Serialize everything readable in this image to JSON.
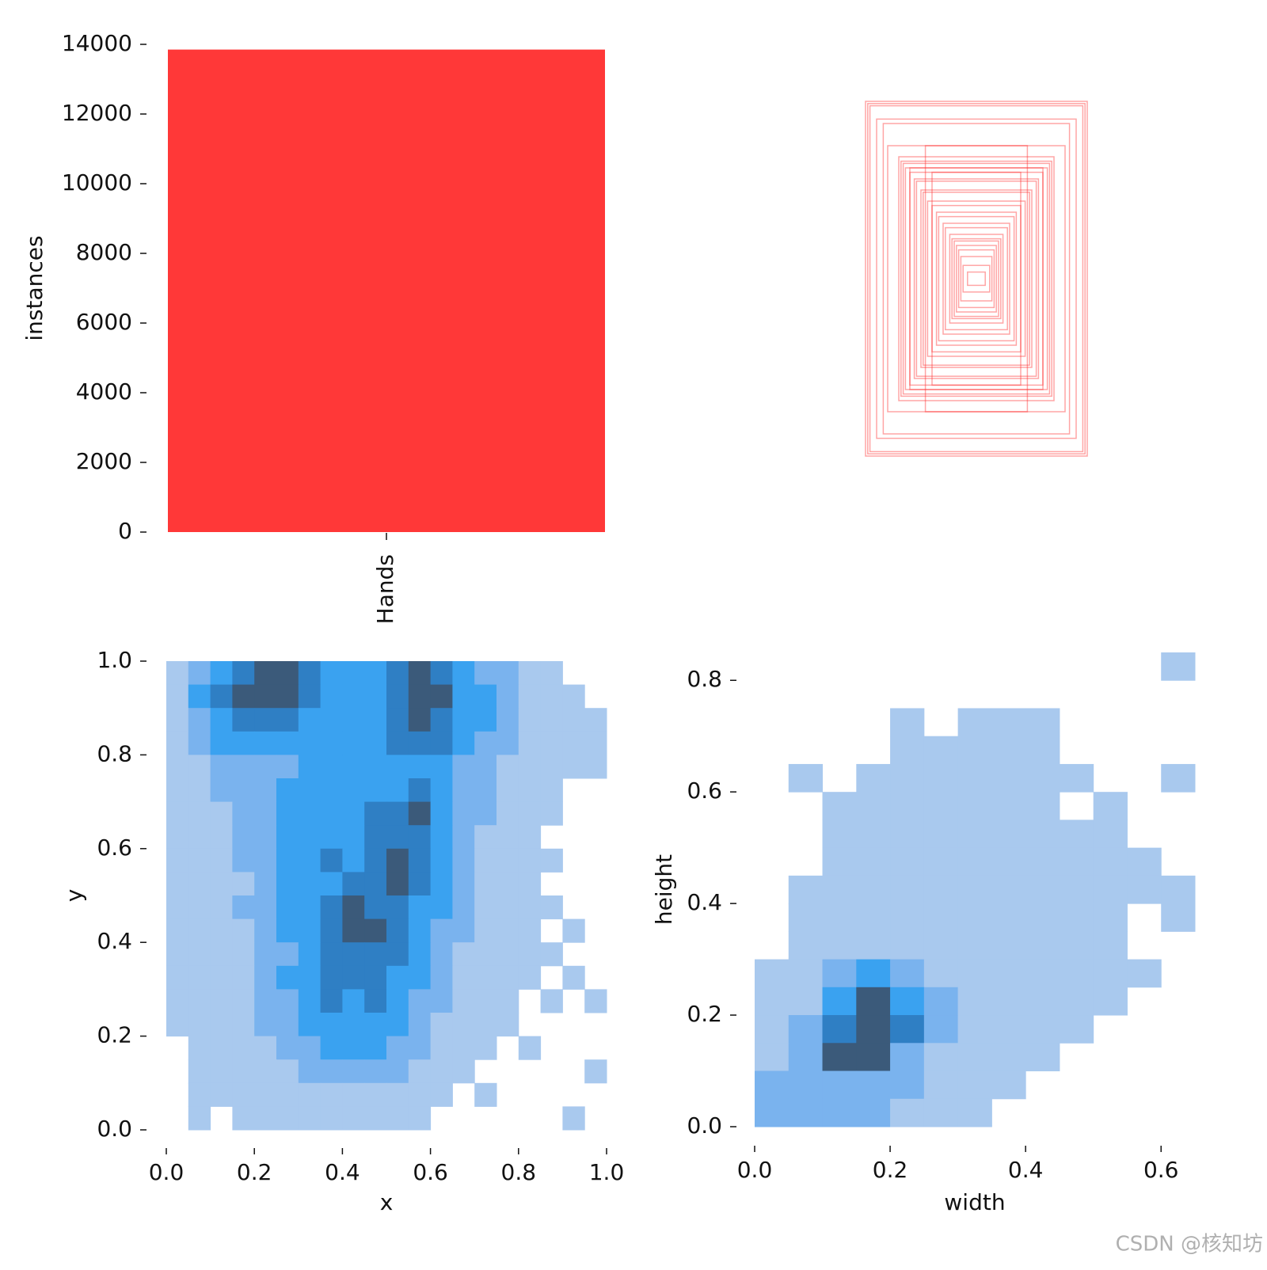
{
  "chart_data": [
    {
      "type": "bar",
      "ylabel": "instances",
      "categories": [
        "Hands"
      ],
      "values": [
        13850
      ],
      "color": "#ff3838",
      "ylim": [
        0,
        14000
      ],
      "yticks": [
        0,
        2000,
        4000,
        6000,
        8000,
        10000,
        12000,
        14000
      ]
    },
    {
      "type": "boxes",
      "color": "#ff3838",
      "boxes": [
        [
          0.5,
          0.8
        ],
        [
          0.49,
          0.79
        ],
        [
          0.48,
          0.78
        ],
        [
          0.45,
          0.72
        ],
        [
          0.42,
          0.7
        ],
        [
          0.4,
          0.6
        ],
        [
          0.35,
          0.55
        ],
        [
          0.34,
          0.53
        ],
        [
          0.33,
          0.52
        ],
        [
          0.32,
          0.5
        ],
        [
          0.3,
          0.5
        ],
        [
          0.3,
          0.48
        ],
        [
          0.28,
          0.45
        ],
        [
          0.27,
          0.44
        ],
        [
          0.25,
          0.4
        ],
        [
          0.24,
          0.39
        ],
        [
          0.23,
          0.6
        ],
        [
          0.22,
          0.35
        ],
        [
          0.2,
          0.48
        ],
        [
          0.2,
          0.33
        ],
        [
          0.18,
          0.3
        ],
        [
          0.17,
          0.28
        ],
        [
          0.15,
          0.25
        ],
        [
          0.14,
          0.23
        ],
        [
          0.12,
          0.2
        ],
        [
          0.11,
          0.18
        ],
        [
          0.1,
          0.17
        ],
        [
          0.09,
          0.15
        ],
        [
          0.08,
          0.13
        ],
        [
          0.07,
          0.1
        ],
        [
          0.06,
          0.06
        ],
        [
          0.04,
          0.03
        ]
      ]
    },
    {
      "type": "hist2d",
      "xlabel": "x",
      "ylabel": "y",
      "xlim": [
        0,
        1
      ],
      "ylim": [
        0,
        1
      ],
      "xticks": [
        {
          "value": 0,
          "label": "0.0"
        },
        0.2,
        0.4,
        0.6,
        0.8,
        {
          "value": 1,
          "label": "1.0"
        }
      ],
      "yticks": [
        {
          "value": 0,
          "label": "0.0"
        },
        0.2,
        0.4,
        0.6,
        0.8,
        {
          "value": 1,
          "label": "1.0"
        }
      ],
      "colors": [
        "#ffffff",
        "#a9c9ee",
        "#7ab3ee",
        "#3aa2f0",
        "#2f7fc4",
        "#3b5a7a"
      ],
      "counts": [
        [
          1,
          2,
          3,
          4,
          5,
          5,
          4,
          3,
          3,
          3,
          4,
          5,
          4,
          3,
          2,
          2,
          1,
          1,
          0,
          0
        ],
        [
          1,
          3,
          4,
          5,
          5,
          5,
          4,
          3,
          3,
          3,
          4,
          5,
          5,
          3,
          3,
          2,
          1,
          1,
          1,
          0
        ],
        [
          1,
          2,
          3,
          4,
          4,
          4,
          3,
          3,
          3,
          3,
          4,
          5,
          4,
          3,
          3,
          2,
          1,
          1,
          1,
          1
        ],
        [
          1,
          2,
          3,
          3,
          3,
          3,
          3,
          3,
          3,
          3,
          4,
          4,
          4,
          3,
          2,
          2,
          1,
          1,
          1,
          1
        ],
        [
          1,
          1,
          2,
          2,
          2,
          2,
          3,
          3,
          3,
          3,
          3,
          3,
          3,
          2,
          2,
          1,
          1,
          1,
          1,
          1
        ],
        [
          1,
          1,
          2,
          2,
          2,
          3,
          3,
          3,
          3,
          3,
          3,
          4,
          3,
          2,
          2,
          1,
          1,
          1,
          0,
          0
        ],
        [
          1,
          1,
          1,
          2,
          2,
          3,
          3,
          3,
          3,
          4,
          4,
          5,
          3,
          2,
          2,
          1,
          1,
          1,
          0,
          0
        ],
        [
          1,
          1,
          1,
          2,
          2,
          3,
          3,
          3,
          3,
          4,
          4,
          4,
          3,
          2,
          1,
          1,
          1,
          0,
          0,
          0
        ],
        [
          1,
          1,
          1,
          2,
          2,
          3,
          3,
          4,
          3,
          4,
          5,
          4,
          3,
          2,
          1,
          1,
          1,
          1,
          0,
          0
        ],
        [
          1,
          1,
          1,
          1,
          2,
          3,
          3,
          3,
          4,
          4,
          5,
          4,
          3,
          2,
          1,
          1,
          1,
          0,
          0,
          0
        ],
        [
          1,
          1,
          1,
          2,
          2,
          3,
          3,
          4,
          5,
          4,
          4,
          3,
          3,
          2,
          1,
          1,
          1,
          1,
          0,
          0
        ],
        [
          1,
          1,
          1,
          1,
          2,
          3,
          3,
          4,
          5,
          5,
          4,
          3,
          2,
          2,
          1,
          1,
          1,
          0,
          1,
          0
        ],
        [
          1,
          1,
          1,
          1,
          2,
          2,
          3,
          4,
          4,
          4,
          4,
          3,
          2,
          1,
          1,
          1,
          1,
          1,
          0,
          0
        ],
        [
          1,
          1,
          1,
          1,
          2,
          3,
          3,
          4,
          4,
          4,
          3,
          3,
          2,
          1,
          1,
          1,
          1,
          0,
          1,
          0
        ],
        [
          1,
          1,
          1,
          1,
          2,
          2,
          3,
          4,
          3,
          4,
          3,
          2,
          2,
          1,
          1,
          1,
          0,
          1,
          0,
          1
        ],
        [
          1,
          1,
          1,
          1,
          2,
          2,
          3,
          3,
          3,
          3,
          3,
          2,
          1,
          1,
          1,
          1,
          0,
          0,
          0,
          0
        ],
        [
          0,
          1,
          1,
          1,
          1,
          2,
          2,
          3,
          3,
          3,
          2,
          2,
          1,
          1,
          1,
          0,
          1,
          0,
          0,
          0
        ],
        [
          0,
          1,
          1,
          1,
          1,
          1,
          2,
          2,
          2,
          2,
          2,
          1,
          1,
          1,
          0,
          0,
          0,
          0,
          0,
          1
        ],
        [
          0,
          1,
          1,
          1,
          1,
          1,
          1,
          1,
          1,
          1,
          1,
          1,
          1,
          0,
          1,
          0,
          0,
          0,
          0,
          0
        ],
        [
          0,
          1,
          0,
          1,
          1,
          1,
          1,
          1,
          1,
          1,
          1,
          1,
          0,
          0,
          0,
          0,
          0,
          0,
          1,
          0
        ]
      ]
    },
    {
      "type": "hist2d",
      "xlabel": "width",
      "ylabel": "height",
      "xlim": [
        0,
        0.65
      ],
      "ylim": [
        0,
        0.85
      ],
      "xticks": [
        {
          "value": 0,
          "label": "0.0"
        },
        0.2,
        0.4,
        0.6
      ],
      "yticks": [
        {
          "value": 0,
          "label": "0.0"
        },
        0.2,
        0.4,
        0.6,
        0.8
      ],
      "colors": [
        "#ffffff",
        "#a9c9ee",
        "#7ab3ee",
        "#3aa2f0",
        "#2f7fc4",
        "#3b5a7a"
      ],
      "counts": [
        [
          0,
          0,
          0,
          0,
          0,
          0,
          0,
          0,
          0,
          0,
          0,
          0,
          1
        ],
        [
          0,
          0,
          0,
          0,
          0,
          0,
          0,
          0,
          0,
          0,
          0,
          0,
          0
        ],
        [
          0,
          0,
          0,
          0,
          1,
          0,
          1,
          1,
          1,
          0,
          0,
          0,
          0
        ],
        [
          0,
          0,
          0,
          0,
          1,
          1,
          1,
          1,
          1,
          0,
          0,
          0,
          0
        ],
        [
          0,
          1,
          0,
          1,
          1,
          1,
          1,
          1,
          1,
          1,
          0,
          0,
          1
        ],
        [
          0,
          0,
          1,
          1,
          1,
          1,
          1,
          1,
          1,
          0,
          1,
          0,
          0
        ],
        [
          0,
          0,
          1,
          1,
          1,
          1,
          1,
          1,
          1,
          1,
          1,
          0,
          0
        ],
        [
          0,
          0,
          1,
          1,
          1,
          1,
          1,
          1,
          1,
          1,
          1,
          1,
          0
        ],
        [
          0,
          1,
          1,
          1,
          1,
          1,
          1,
          1,
          1,
          1,
          1,
          1,
          1
        ],
        [
          0,
          1,
          1,
          1,
          1,
          1,
          1,
          1,
          1,
          1,
          1,
          0,
          1
        ],
        [
          0,
          1,
          1,
          1,
          1,
          1,
          1,
          1,
          1,
          1,
          1,
          0,
          0
        ],
        [
          1,
          1,
          2,
          3,
          2,
          1,
          1,
          1,
          1,
          1,
          1,
          1,
          0
        ],
        [
          1,
          1,
          3,
          5,
          3,
          2,
          1,
          1,
          1,
          1,
          1,
          0,
          0
        ],
        [
          1,
          2,
          4,
          5,
          4,
          2,
          1,
          1,
          1,
          1,
          0,
          0,
          0
        ],
        [
          1,
          2,
          5,
          5,
          2,
          1,
          1,
          1,
          1,
          0,
          0,
          0,
          0
        ],
        [
          2,
          2,
          2,
          2,
          2,
          1,
          1,
          1,
          0,
          0,
          0,
          0,
          0
        ],
        [
          2,
          2,
          2,
          2,
          1,
          1,
          1,
          0,
          0,
          0,
          0,
          0,
          0
        ]
      ]
    }
  ],
  "watermark": "CSDN @核知坊"
}
